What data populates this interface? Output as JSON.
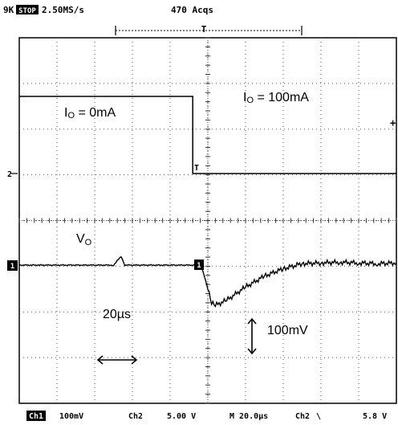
{
  "header": {
    "mode": "9K",
    "state": "STOP",
    "sample_rate": "2.50MS/s",
    "acqs": "470 Acqs"
  },
  "annotations": {
    "io_zero_main": "I",
    "io_zero_sub": "O",
    "io_zero_value": " = 0mA",
    "io_100_main": "I",
    "io_100_sub": "O",
    "io_100_value": " = 100mA",
    "vo_main": "V",
    "vo_sub": "O",
    "time_span": "20µs",
    "voltage_span": "100mV"
  },
  "markers": {
    "ch1_ref": "1",
    "ch2_ref": "2",
    "trigger": "T"
  },
  "status_bar": {
    "ch1": "Ch1",
    "ch1_scale": "100mV",
    "ch2": "Ch2",
    "ch2_scale": "5.00 V",
    "timebase": "M 20.0µs",
    "trig_source": "Ch2",
    "trig_level": "5.8 V"
  },
  "chart_data": {
    "type": "line",
    "title": "",
    "xlabel": "",
    "ylabel": "",
    "grid": true,
    "x_divisions": 10,
    "y_divisions": 8,
    "xlim": [
      -100,
      100
    ],
    "x_unit": "µs",
    "trigger_time": 0,
    "series": [
      {
        "channel": "Ch2",
        "scale": "5.00 V/div",
        "description": "load current step",
        "x": [
          -100,
          -8,
          -8,
          100
        ],
        "y": [
          2.26,
          2.26,
          1.0,
          1.0
        ]
      },
      {
        "channel": "Ch1",
        "scale": "100mV/div",
        "description": "output voltage transient",
        "x": [
          -100,
          -50,
          -46,
          -44,
          -6,
          -3,
          -1,
          0,
          2,
          4,
          10,
          20,
          30,
          40,
          50,
          60,
          70,
          80,
          90,
          100
        ],
        "y": [
          0,
          0,
          0.12,
          0,
          0,
          -0.05,
          -0.22,
          -0.33,
          -0.52,
          -0.55,
          -0.48,
          -0.3,
          -0.15,
          -0.05,
          0.02,
          0.03,
          0.04,
          0.03,
          0.02,
          0.03
        ]
      }
    ]
  }
}
